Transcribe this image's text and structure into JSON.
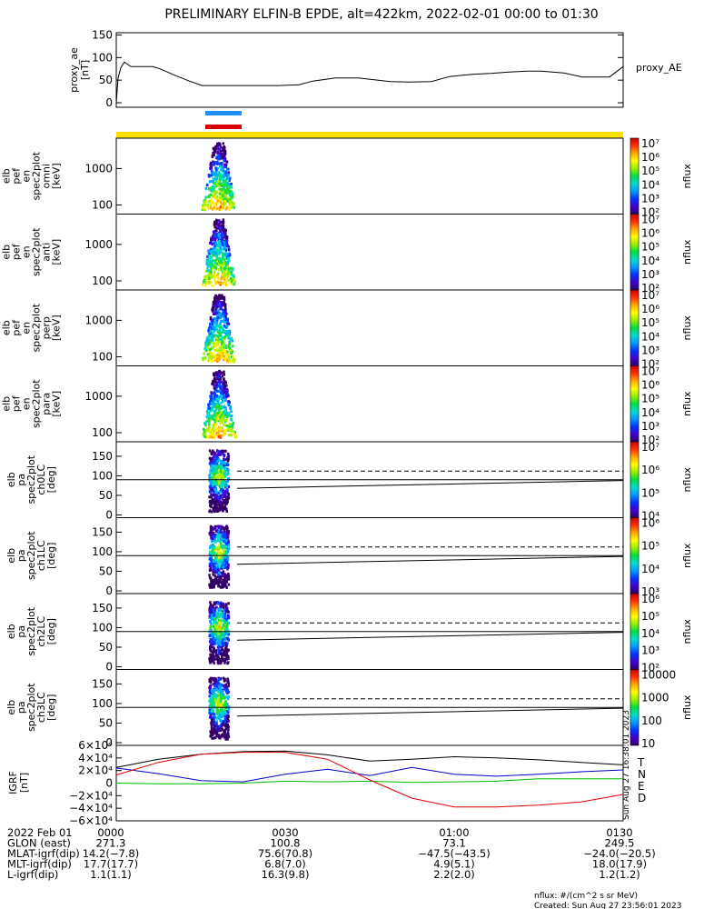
{
  "title": "PRELIMINARY ELFIN-B EPDE, alt=422km, 2022-02-01 00:00 to 01:30",
  "colors": {
    "blue_bar": "#1e90ff",
    "red_bar": "#dd0000",
    "yellow_band": "#ffe000",
    "comp_T": "#000000",
    "comp_N": "#0000cc",
    "comp_E": "#00bb00",
    "comp_D": "#dd0000"
  },
  "proxy": {
    "ylabel": "proxy_ae\n[nT]",
    "label": "proxy_AE",
    "yticks": [
      "150",
      "100",
      "50",
      "0"
    ],
    "ylim": [
      -10,
      155
    ]
  },
  "panels": [
    {
      "kind": "energy",
      "ylabel": [
        "elb",
        "pef",
        "en",
        "spec2plot",
        "omni",
        "[keV]"
      ],
      "yticks": [
        "1000",
        "100"
      ],
      "cbar_ticks": [
        "10⁷",
        "10⁶",
        "10⁵",
        "10⁴",
        "10³",
        "10²"
      ],
      "cbar_label": "nflux"
    },
    {
      "kind": "energy",
      "ylabel": [
        "elb",
        "pef",
        "en",
        "spec2plot",
        "anti",
        "[keV]"
      ],
      "yticks": [
        "1000",
        "100"
      ],
      "cbar_ticks": [
        "10⁷",
        "10⁶",
        "10⁵",
        "10⁴",
        "10³",
        "10²"
      ],
      "cbar_label": "nflux"
    },
    {
      "kind": "energy",
      "ylabel": [
        "elb",
        "pef",
        "en",
        "spec2plot",
        "perp",
        "[keV]"
      ],
      "yticks": [
        "1000",
        "100"
      ],
      "cbar_ticks": [
        "10⁷",
        "10⁶",
        "10⁵",
        "10⁴",
        "10³",
        "10²"
      ],
      "cbar_label": "nflux"
    },
    {
      "kind": "energy",
      "ylabel": [
        "elb",
        "pef",
        "en",
        "spec2plot",
        "para",
        "[keV]"
      ],
      "yticks": [
        "1000",
        "100"
      ],
      "cbar_ticks": [
        "10⁷",
        "10⁶",
        "10⁵",
        "10⁴",
        "10³",
        "10²"
      ],
      "cbar_label": "nflux"
    },
    {
      "kind": "pa",
      "ylabel": [
        "elb",
        "pa",
        "spec2plot",
        "ch0LC",
        "[deg]"
      ],
      "yticks": [
        "150",
        "100",
        "50",
        "0"
      ],
      "cbar_ticks": [
        "10⁷",
        "10⁶",
        "10⁵",
        "10⁴"
      ],
      "cbar_label": "nflux"
    },
    {
      "kind": "pa",
      "ylabel": [
        "elb",
        "pa",
        "spec2plot",
        "ch1LC",
        "[deg]"
      ],
      "yticks": [
        "150",
        "100",
        "50",
        "0"
      ],
      "cbar_ticks": [
        "10⁶",
        "10⁵",
        "10⁴",
        "10³"
      ],
      "cbar_label": "nflux"
    },
    {
      "kind": "pa",
      "ylabel": [
        "elb",
        "pa",
        "spec2plot",
        "ch2LC",
        "[deg]"
      ],
      "yticks": [
        "150",
        "100",
        "50",
        "0"
      ],
      "cbar_ticks": [
        "10⁶",
        "10⁵",
        "10⁴",
        "10³",
        "10²"
      ],
      "cbar_label": "nflux"
    },
    {
      "kind": "pa",
      "ylabel": [
        "elb",
        "pa",
        "spec2plot",
        "ch3LC",
        "[deg]"
      ],
      "yticks": [
        "150",
        "100",
        "50",
        "0"
      ],
      "cbar_ticks": [
        "10000",
        "1000",
        "100",
        "10"
      ],
      "cbar_label": "nflux"
    }
  ],
  "field": {
    "ylabel": "IGRF\n[nT]",
    "yticks": [
      "6×10⁴",
      "4×10⁴",
      "2×10⁴",
      "0",
      "−2×10⁴",
      "−4×10⁴",
      "−6×10⁴"
    ],
    "ylim": [
      -60000,
      60000
    ],
    "components": [
      "T",
      "N",
      "E",
      "D"
    ],
    "stamp": "Sun Aug 27 16:38:01 2023"
  },
  "footer": {
    "rows": [
      {
        "label": "2022 Feb 01",
        "values": [
          "0000",
          "0030",
          "01:00",
          "0130"
        ]
      },
      {
        "label": "GLON (east)",
        "values": [
          "271.3",
          "100.8",
          "73.1",
          "249.5"
        ]
      },
      {
        "label": "MLAT-igrf(dip)",
        "values": [
          "14.2(−7.8)",
          "75.6(70.8)",
          "−47.5(−43.5)",
          "−24.0(−20.5)"
        ]
      },
      {
        "label": "MLT-igrf(dip)",
        "values": [
          "17.7(17.7)",
          "6.8(7.0)",
          "4.9(5.1)",
          "18.0(17.9)"
        ]
      },
      {
        "label": "L-igrf(dip)",
        "values": [
          "1.1(1.1)",
          "16.3(9.8)",
          "2.2(2.0)",
          "1.2(1.2)"
        ]
      }
    ],
    "note1": "nflux: #/(cm^2 s sr MeV)",
    "note2": "Created: Sun Aug 27 23:56:01 2023"
  },
  "chart_data": {
    "type": "line",
    "title": "PRELIMINARY ELFIN-B EPDE, alt=422km, 2022-02-01 00:00 to 01:30",
    "x_range": [
      "2022-02-01 00:00",
      "2022-02-01 01:30"
    ],
    "series": [
      {
        "name": "proxy_AE",
        "x_min": [
          0,
          2,
          5,
          9,
          16,
          30,
          40,
          48,
          65,
          80,
          94,
          104,
          117,
          133,
          145,
          155,
          177,
          200,
          215,
          240,
          265,
          300,
          320,
          345,
          365,
          390,
          410,
          430,
          450,
          465,
          490,
          510,
          540,
          555
        ],
        "values": [
          0,
          55,
          78,
          90,
          80,
          80,
          80,
          75,
          60,
          48,
          38,
          38,
          38,
          38,
          38,
          38,
          38,
          40,
          48,
          55,
          55,
          47,
          46,
          47,
          58,
          63,
          65,
          68,
          70,
          70,
          66,
          57,
          57,
          80
        ]
      }
    ],
    "field_series_x_min": [
      0,
      7.5,
      15,
      22.5,
      30,
      37.5,
      45,
      52.5,
      60,
      67.5,
      75,
      82.5,
      90
    ],
    "field_series": [
      {
        "name": "T",
        "values": [
          25000,
          38000,
          46000,
          50000,
          51000,
          45000,
          35000,
          38000,
          42000,
          40000,
          37000,
          33000,
          29000
        ]
      },
      {
        "name": "N",
        "values": [
          24000,
          15000,
          4000,
          2000,
          14000,
          22000,
          12000,
          25000,
          14000,
          11000,
          14000,
          18000,
          21000
        ]
      },
      {
        "name": "E",
        "values": [
          0,
          -1000,
          -1000,
          0,
          3000,
          2000,
          3000,
          1000,
          2000,
          3000,
          7000,
          7000,
          7000
        ]
      },
      {
        "name": "D",
        "values": [
          13000,
          33000,
          46000,
          49000,
          49000,
          38000,
          5000,
          -24000,
          -38000,
          -38000,
          -35000,
          -30000,
          -18000
        ]
      }
    ]
  }
}
